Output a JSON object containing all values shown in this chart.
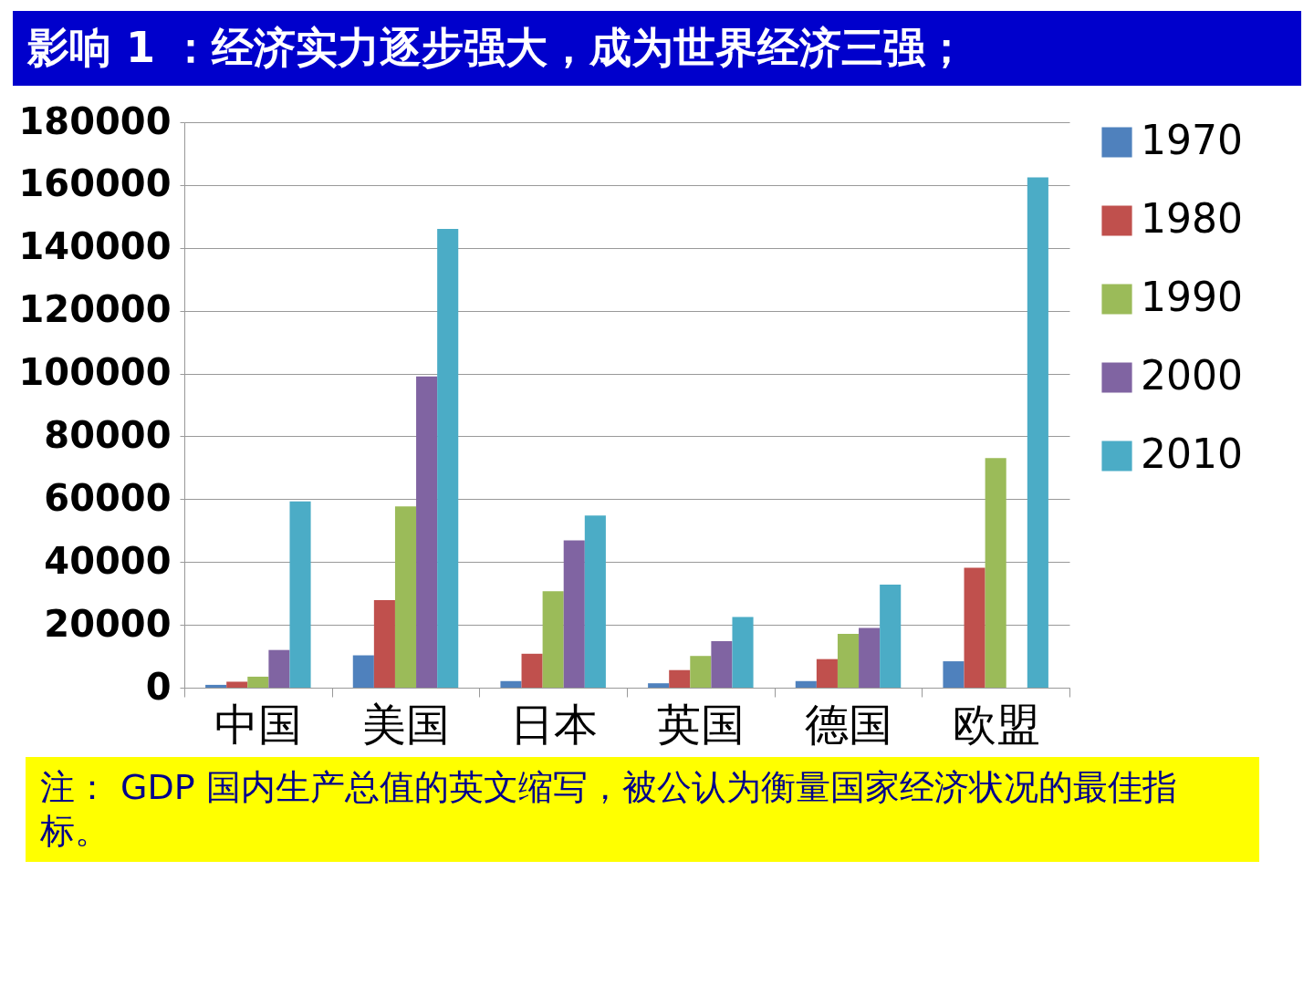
{
  "chart_data": {
    "type": "bar",
    "title": "影响 1 ：经济实力逐步强大，成为世界经济三强；",
    "categories": [
      "中国",
      "美国",
      "日本",
      "英国",
      "德国",
      "欧盟"
    ],
    "series": [
      {
        "name": "1970",
        "color": "#4f81bd",
        "values": [
          900,
          10300,
          2100,
          1400,
          2100,
          8400
        ]
      },
      {
        "name": "1980",
        "color": "#c0504d",
        "values": [
          1900,
          27900,
          10800,
          5600,
          9100,
          38200
        ]
      },
      {
        "name": "1990",
        "color": "#9bbb59",
        "values": [
          3500,
          57700,
          30700,
          10100,
          17100,
          73100
        ]
      },
      {
        "name": "2000",
        "color": "#8064a2",
        "values": [
          12000,
          99100,
          46900,
          14800,
          19000,
          null
        ]
      },
      {
        "name": "2010",
        "color": "#4bacc6",
        "values": [
          59300,
          146000,
          54800,
          22500,
          32800,
          162400
        ]
      }
    ],
    "ylim": [
      0,
      180000
    ],
    "yticks": [
      0,
      20000,
      40000,
      60000,
      80000,
      100000,
      120000,
      140000,
      160000,
      180000
    ],
    "grid": "y",
    "legend": "right",
    "annotations": [
      "注： GDP 国内生产总值的英文缩写，被公认为衡量国家经济状况的最佳指标。"
    ]
  }
}
